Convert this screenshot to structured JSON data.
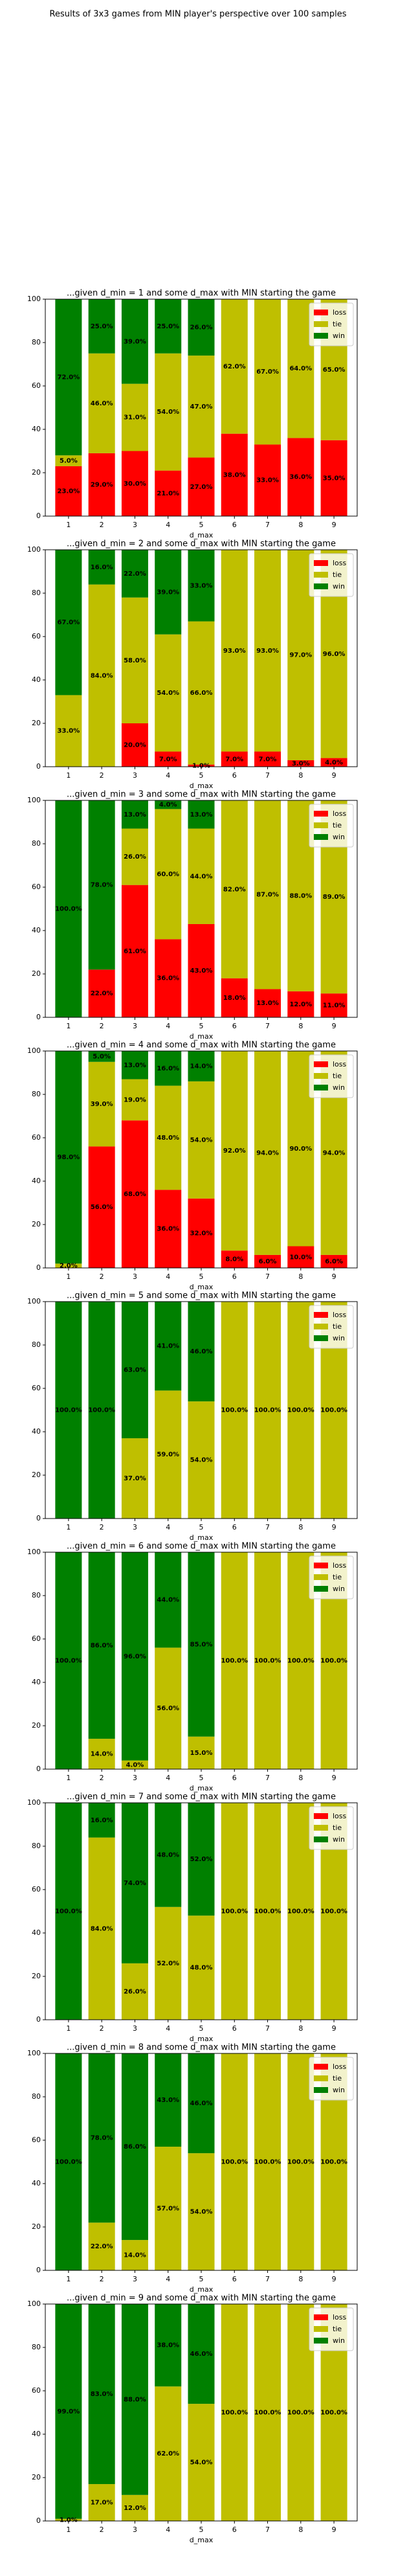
{
  "title": "Results of 3x3 games from MIN player's perspective over 100 samples",
  "chart_data": [
    {
      "type": "bar",
      "stacked": true,
      "legend": "upper right",
      "title": "...given d_min = 1 and some d_max with MIN starting the game",
      "xlabel": "d_max",
      "categories": [
        "1",
        "2",
        "3",
        "4",
        "5",
        "6",
        "7",
        "8",
        "9"
      ],
      "ylim": [
        0,
        100
      ],
      "yticks": [
        0,
        20,
        40,
        60,
        80,
        100
      ],
      "series": [
        {
          "name": "loss",
          "color": "#ff0000",
          "values": [
            23,
            29,
            30,
            21,
            27,
            38,
            33,
            36,
            35
          ],
          "value_labels": [
            "23.0%",
            "29.0%",
            "30.0%",
            "21.0%",
            "27.0%",
            "38.0%",
            "33.0%",
            "36.0%",
            "35.0%"
          ]
        },
        {
          "name": "tie",
          "color": "#bfbf00",
          "values": [
            5,
            46,
            31,
            54,
            47,
            62,
            67,
            64,
            65
          ],
          "value_labels": [
            "5.0%",
            "46.0%",
            "31.0%",
            "54.0%",
            "47.0%",
            "62.0%",
            "67.0%",
            "64.0%",
            "65.0%"
          ]
        },
        {
          "name": "win",
          "color": "#008000",
          "values": [
            72,
            25,
            39,
            25,
            26,
            0,
            0,
            0,
            0
          ],
          "value_labels": [
            "72.0%",
            "25.0%",
            "39.0%",
            "25.0%",
            "26.0%",
            null,
            null,
            null,
            null
          ]
        }
      ]
    },
    {
      "type": "bar",
      "stacked": true,
      "legend": "upper right",
      "title": "...given d_min = 2 and some d_max with MIN starting the game",
      "xlabel": "d_max",
      "categories": [
        "1",
        "2",
        "3",
        "4",
        "5",
        "6",
        "7",
        "8",
        "9"
      ],
      "ylim": [
        0,
        100
      ],
      "yticks": [
        0,
        20,
        40,
        60,
        80,
        100
      ],
      "series": [
        {
          "name": "loss",
          "color": "#ff0000",
          "values": [
            0,
            0,
            20,
            7,
            1,
            7,
            7,
            3,
            4
          ],
          "value_labels": [
            null,
            null,
            "20.0%",
            "7.0%",
            "1.0%",
            "7.0%",
            "7.0%",
            "3.0%",
            "4.0%"
          ]
        },
        {
          "name": "tie",
          "color": "#bfbf00",
          "values": [
            33,
            84,
            58,
            54,
            66,
            93,
            93,
            97,
            96
          ],
          "value_labels": [
            "33.0%",
            "84.0%",
            "58.0%",
            "54.0%",
            "66.0%",
            "93.0%",
            "93.0%",
            "97.0%",
            "96.0%"
          ]
        },
        {
          "name": "win",
          "color": "#008000",
          "values": [
            67,
            16,
            22,
            39,
            33,
            0,
            0,
            0,
            0
          ],
          "value_labels": [
            "67.0%",
            "16.0%",
            "22.0%",
            "39.0%",
            "33.0%",
            null,
            null,
            null,
            null
          ]
        }
      ]
    },
    {
      "type": "bar",
      "stacked": true,
      "legend": "upper right",
      "title": "...given d_min = 3 and some d_max with MIN starting the game",
      "xlabel": "d_max",
      "categories": [
        "1",
        "2",
        "3",
        "4",
        "5",
        "6",
        "7",
        "8",
        "9"
      ],
      "ylim": [
        0,
        100
      ],
      "yticks": [
        0,
        20,
        40,
        60,
        80,
        100
      ],
      "series": [
        {
          "name": "loss",
          "color": "#ff0000",
          "values": [
            0,
            22,
            61,
            36,
            43,
            18,
            13,
            12,
            11
          ],
          "value_labels": [
            null,
            "22.0%",
            "61.0%",
            "36.0%",
            "43.0%",
            "18.0%",
            "13.0%",
            "12.0%",
            "11.0%"
          ]
        },
        {
          "name": "tie",
          "color": "#bfbf00",
          "values": [
            0,
            0,
            26,
            60,
            44,
            82,
            87,
            88,
            89
          ],
          "value_labels": [
            null,
            null,
            "26.0%",
            "60.0%",
            "44.0%",
            "82.0%",
            "87.0%",
            "88.0%",
            "89.0%"
          ]
        },
        {
          "name": "win",
          "color": "#008000",
          "values": [
            100,
            78,
            13,
            4,
            13,
            0,
            0,
            0,
            0
          ],
          "value_labels": [
            "100.0%",
            "78.0%",
            "13.0%",
            "4.0%",
            "13.0%",
            null,
            null,
            null,
            null
          ]
        }
      ]
    },
    {
      "type": "bar",
      "stacked": true,
      "legend": "upper right",
      "title": "...given d_min = 4 and some d_max with MIN starting the game",
      "xlabel": "d_max",
      "categories": [
        "1",
        "2",
        "3",
        "4",
        "5",
        "6",
        "7",
        "8",
        "9"
      ],
      "ylim": [
        0,
        100
      ],
      "yticks": [
        0,
        20,
        40,
        60,
        80,
        100
      ],
      "series": [
        {
          "name": "loss",
          "color": "#ff0000",
          "values": [
            0,
            56,
            68,
            36,
            32,
            8,
            6,
            10,
            6
          ],
          "value_labels": [
            null,
            "56.0%",
            "68.0%",
            "36.0%",
            "32.0%",
            "8.0%",
            "6.0%",
            "10.0%",
            "6.0%"
          ]
        },
        {
          "name": "tie",
          "color": "#bfbf00",
          "values": [
            2,
            39,
            19,
            48,
            54,
            92,
            94,
            90,
            94
          ],
          "value_labels": [
            "2.0%",
            "39.0%",
            "19.0%",
            "48.0%",
            "54.0%",
            "92.0%",
            "94.0%",
            "90.0%",
            "94.0%"
          ]
        },
        {
          "name": "win",
          "color": "#008000",
          "values": [
            98,
            5,
            13,
            16,
            14,
            0,
            0,
            0,
            0
          ],
          "value_labels": [
            "98.0%",
            "5.0%",
            "13.0%",
            "16.0%",
            "14.0%",
            null,
            null,
            null,
            null
          ]
        }
      ]
    },
    {
      "type": "bar",
      "stacked": true,
      "legend": "upper right",
      "title": "...given d_min = 5 and some d_max with MIN starting the game",
      "xlabel": "d_max",
      "categories": [
        "1",
        "2",
        "3",
        "4",
        "5",
        "6",
        "7",
        "8",
        "9"
      ],
      "ylim": [
        0,
        100
      ],
      "yticks": [
        0,
        20,
        40,
        60,
        80,
        100
      ],
      "series": [
        {
          "name": "loss",
          "color": "#ff0000",
          "values": [
            0,
            0,
            0,
            0,
            0,
            0,
            0,
            0,
            0
          ],
          "value_labels": [
            null,
            null,
            null,
            null,
            null,
            null,
            null,
            null,
            null
          ]
        },
        {
          "name": "tie",
          "color": "#bfbf00",
          "values": [
            0,
            0,
            37,
            59,
            54,
            100,
            100,
            100,
            100
          ],
          "value_labels": [
            null,
            null,
            "37.0%",
            "59.0%",
            "54.0%",
            "100.0%",
            "100.0%",
            "100.0%",
            "100.0%"
          ]
        },
        {
          "name": "win",
          "color": "#008000",
          "values": [
            100,
            100,
            63,
            41,
            46,
            0,
            0,
            0,
            0
          ],
          "value_labels": [
            "100.0%",
            "100.0%",
            "63.0%",
            "41.0%",
            "46.0%",
            null,
            null,
            null,
            null
          ]
        }
      ]
    },
    {
      "type": "bar",
      "stacked": true,
      "legend": "upper right",
      "title": "...given d_min = 6 and some d_max with MIN starting the game",
      "xlabel": "d_max",
      "categories": [
        "1",
        "2",
        "3",
        "4",
        "5",
        "6",
        "7",
        "8",
        "9"
      ],
      "ylim": [
        0,
        100
      ],
      "yticks": [
        0,
        20,
        40,
        60,
        80,
        100
      ],
      "series": [
        {
          "name": "loss",
          "color": "#ff0000",
          "values": [
            0,
            0,
            0,
            0,
            0,
            0,
            0,
            0,
            0
          ],
          "value_labels": [
            null,
            null,
            null,
            null,
            null,
            null,
            null,
            null,
            null
          ]
        },
        {
          "name": "tie",
          "color": "#bfbf00",
          "values": [
            0,
            14,
            4,
            56,
            15,
            100,
            100,
            100,
            100
          ],
          "value_labels": [
            null,
            "14.0%",
            "4.0%",
            "56.0%",
            "15.0%",
            "100.0%",
            "100.0%",
            "100.0%",
            "100.0%"
          ]
        },
        {
          "name": "win",
          "color": "#008000",
          "values": [
            100,
            86,
            96,
            44,
            85,
            0,
            0,
            0,
            0
          ],
          "value_labels": [
            "100.0%",
            "86.0%",
            "96.0%",
            "44.0%",
            "85.0%",
            null,
            null,
            null,
            null
          ]
        }
      ]
    },
    {
      "type": "bar",
      "stacked": true,
      "legend": "upper right",
      "title": "...given d_min = 7 and some d_max with MIN starting the game",
      "xlabel": "d_max",
      "categories": [
        "1",
        "2",
        "3",
        "4",
        "5",
        "6",
        "7",
        "8",
        "9"
      ],
      "ylim": [
        0,
        100
      ],
      "yticks": [
        0,
        20,
        40,
        60,
        80,
        100
      ],
      "series": [
        {
          "name": "loss",
          "color": "#ff0000",
          "values": [
            0,
            0,
            0,
            0,
            0,
            0,
            0,
            0,
            0
          ],
          "value_labels": [
            null,
            null,
            null,
            null,
            null,
            null,
            null,
            null,
            null
          ]
        },
        {
          "name": "tie",
          "color": "#bfbf00",
          "values": [
            0,
            84,
            26,
            52,
            48,
            100,
            100,
            100,
            100
          ],
          "value_labels": [
            null,
            "84.0%",
            "26.0%",
            "52.0%",
            "48.0%",
            "100.0%",
            "100.0%",
            "100.0%",
            "100.0%"
          ]
        },
        {
          "name": "win",
          "color": "#008000",
          "values": [
            100,
            16,
            74,
            48,
            52,
            0,
            0,
            0,
            0
          ],
          "value_labels": [
            "100.0%",
            "16.0%",
            "74.0%",
            "48.0%",
            "52.0%",
            null,
            null,
            null,
            null
          ]
        }
      ]
    },
    {
      "type": "bar",
      "stacked": true,
      "legend": "upper right",
      "title": "...given d_min = 8 and some d_max with MIN starting the game",
      "xlabel": "d_max",
      "categories": [
        "1",
        "2",
        "3",
        "4",
        "5",
        "6",
        "7",
        "8",
        "9"
      ],
      "ylim": [
        0,
        100
      ],
      "yticks": [
        0,
        20,
        40,
        60,
        80,
        100
      ],
      "series": [
        {
          "name": "loss",
          "color": "#ff0000",
          "values": [
            0,
            0,
            0,
            0,
            0,
            0,
            0,
            0,
            0
          ],
          "value_labels": [
            null,
            null,
            null,
            null,
            null,
            null,
            null,
            null,
            null
          ]
        },
        {
          "name": "tie",
          "color": "#bfbf00",
          "values": [
            0,
            22,
            14,
            57,
            54,
            100,
            100,
            100,
            100
          ],
          "value_labels": [
            null,
            "22.0%",
            "14.0%",
            "57.0%",
            "54.0%",
            "100.0%",
            "100.0%",
            "100.0%",
            "100.0%"
          ]
        },
        {
          "name": "win",
          "color": "#008000",
          "values": [
            100,
            78,
            86,
            43,
            46,
            0,
            0,
            0,
            0
          ],
          "value_labels": [
            "100.0%",
            "78.0%",
            "86.0%",
            "43.0%",
            "46.0%",
            null,
            null,
            null,
            null
          ]
        }
      ]
    },
    {
      "type": "bar",
      "stacked": true,
      "legend": "upper right",
      "title": "...given d_min = 9 and some d_max with MIN starting the game",
      "xlabel": "d_max",
      "categories": [
        "1",
        "2",
        "3",
        "4",
        "5",
        "6",
        "7",
        "8",
        "9"
      ],
      "ylim": [
        0,
        100
      ],
      "yticks": [
        0,
        20,
        40,
        60,
        80,
        100
      ],
      "series": [
        {
          "name": "loss",
          "color": "#ff0000",
          "values": [
            0,
            0,
            0,
            0,
            0,
            0,
            0,
            0,
            0
          ],
          "value_labels": [
            null,
            null,
            null,
            null,
            null,
            null,
            null,
            null,
            null
          ]
        },
        {
          "name": "tie",
          "color": "#bfbf00",
          "values": [
            1,
            17,
            12,
            62,
            54,
            100,
            100,
            100,
            100
          ],
          "value_labels": [
            "1.0%",
            "17.0%",
            "12.0%",
            "62.0%",
            "54.0%",
            "100.0%",
            "100.0%",
            "100.0%",
            "100.0%"
          ]
        },
        {
          "name": "win",
          "color": "#008000",
          "values": [
            99,
            83,
            88,
            38,
            46,
            0,
            0,
            0,
            0
          ],
          "value_labels": [
            "99.0%",
            "83.0%",
            "88.0%",
            "38.0%",
            "46.0%",
            null,
            null,
            null,
            null
          ]
        }
      ]
    }
  ]
}
